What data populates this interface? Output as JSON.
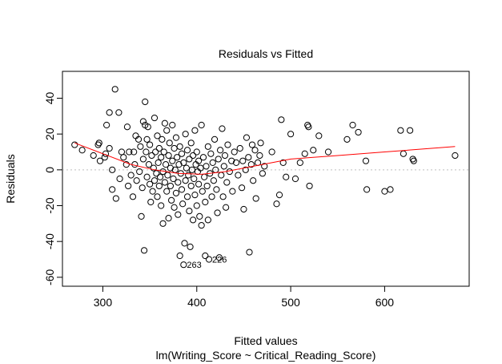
{
  "chart_data": {
    "type": "scatter",
    "title": "Residuals vs Fitted",
    "xlabel": "Fitted values",
    "subtitle": "lm(Writing_Score ~ Critical_Reading_Score)",
    "ylabel": "Residuals",
    "xlim": [
      257,
      690
    ],
    "ylim": [
      -65,
      55
    ],
    "x_ticks": [
      300,
      400,
      500,
      600
    ],
    "y_ticks": [
      -60,
      -40,
      -20,
      0,
      20,
      40
    ],
    "reference_line": {
      "y": 0,
      "style": "dotted",
      "color": "#bfbfbf"
    },
    "smooth_color": "#ff0000",
    "point_color": "#000000",
    "grid": false,
    "legend": "none",
    "smooth_curve": [
      {
        "x": 270,
        "y": 15
      },
      {
        "x": 300,
        "y": 9
      },
      {
        "x": 330,
        "y": 3
      },
      {
        "x": 355,
        "y": 0
      },
      {
        "x": 380,
        "y": -2
      },
      {
        "x": 405,
        "y": -2.5
      },
      {
        "x": 430,
        "y": -1
      },
      {
        "x": 460,
        "y": 2
      },
      {
        "x": 500,
        "y": 6
      },
      {
        "x": 550,
        "y": 8
      },
      {
        "x": 600,
        "y": 10
      },
      {
        "x": 675,
        "y": 13
      }
    ],
    "points": [
      {
        "x": 270,
        "y": 14
      },
      {
        "x": 278,
        "y": 11
      },
      {
        "x": 290,
        "y": 8
      },
      {
        "x": 295,
        "y": 14
      },
      {
        "x": 296,
        "y": 15
      },
      {
        "x": 297,
        "y": 5
      },
      {
        "x": 302,
        "y": 7
      },
      {
        "x": 303,
        "y": 9
      },
      {
        "x": 304,
        "y": 25
      },
      {
        "x": 307,
        "y": 32
      },
      {
        "x": 307,
        "y": 12
      },
      {
        "x": 310,
        "y": 0
      },
      {
        "x": 310,
        "y": -11
      },
      {
        "x": 313,
        "y": 45
      },
      {
        "x": 314,
        "y": -16
      },
      {
        "x": 317,
        "y": 32
      },
      {
        "x": 318,
        "y": -5
      },
      {
        "x": 320,
        "y": 10
      },
      {
        "x": 322,
        "y": 7
      },
      {
        "x": 325,
        "y": 3
      },
      {
        "x": 326,
        "y": 24
      },
      {
        "x": 327,
        "y": -9
      },
      {
        "x": 328,
        "y": 10
      },
      {
        "x": 330,
        "y": -3
      },
      {
        "x": 332,
        "y": -15
      },
      {
        "x": 333,
        "y": 10
      },
      {
        "x": 334,
        "y": 3
      },
      {
        "x": 335,
        "y": 19
      },
      {
        "x": 336,
        "y": -6
      },
      {
        "x": 338,
        "y": 17
      },
      {
        "x": 339,
        "y": -1
      },
      {
        "x": 340,
        "y": 13
      },
      {
        "x": 341,
        "y": -26
      },
      {
        "x": 342,
        "y": -10
      },
      {
        "x": 343,
        "y": 6
      },
      {
        "x": 343,
        "y": 27
      },
      {
        "x": 344,
        "y": -45
      },
      {
        "x": 345,
        "y": 25
      },
      {
        "x": 345,
        "y": 38
      },
      {
        "x": 346,
        "y": 10
      },
      {
        "x": 347,
        "y": -4
      },
      {
        "x": 347,
        "y": 17
      },
      {
        "x": 348,
        "y": 24
      },
      {
        "x": 349,
        "y": 3
      },
      {
        "x": 350,
        "y": -8
      },
      {
        "x": 350,
        "y": 14
      },
      {
        "x": 351,
        "y": -18
      },
      {
        "x": 352,
        "y": 8
      },
      {
        "x": 353,
        "y": -12
      },
      {
        "x": 354,
        "y": 1
      },
      {
        "x": 355,
        "y": -6
      },
      {
        "x": 355,
        "y": 29
      },
      {
        "x": 356,
        "y": 10
      },
      {
        "x": 357,
        "y": -2
      },
      {
        "x": 358,
        "y": 19
      },
      {
        "x": 358,
        "y": -15
      },
      {
        "x": 359,
        "y": 4
      },
      {
        "x": 360,
        "y": -9
      },
      {
        "x": 360,
        "y": 12
      },
      {
        "x": 361,
        "y": -4
      },
      {
        "x": 362,
        "y": 7
      },
      {
        "x": 362,
        "y": -20
      },
      {
        "x": 363,
        "y": 17
      },
      {
        "x": 364,
        "y": -1
      },
      {
        "x": 364,
        "y": -30
      },
      {
        "x": 365,
        "y": 10
      },
      {
        "x": 366,
        "y": -7
      },
      {
        "x": 366,
        "y": 26
      },
      {
        "x": 367,
        "y": 3
      },
      {
        "x": 368,
        "y": -12
      },
      {
        "x": 368,
        "y": 22
      },
      {
        "x": 369,
        "y": -3
      },
      {
        "x": 370,
        "y": 8
      },
      {
        "x": 370,
        "y": -27
      },
      {
        "x": 371,
        "y": 15
      },
      {
        "x": 372,
        "y": -9
      },
      {
        "x": 372,
        "y": 1
      },
      {
        "x": 373,
        "y": -17
      },
      {
        "x": 374,
        "y": 25
      },
      {
        "x": 374,
        "y": 5
      },
      {
        "x": 375,
        "y": -5
      },
      {
        "x": 376,
        "y": 12
      },
      {
        "x": 376,
        "y": -21
      },
      {
        "x": 377,
        "y": 0
      },
      {
        "x": 378,
        "y": -13
      },
      {
        "x": 378,
        "y": 18
      },
      {
        "x": 379,
        "y": 7
      },
      {
        "x": 380,
        "y": -7
      },
      {
        "x": 380,
        "y": -25
      },
      {
        "x": 381,
        "y": 3
      },
      {
        "x": 382,
        "y": -48
      },
      {
        "x": 382,
        "y": 13
      },
      {
        "x": 383,
        "y": -2
      },
      {
        "x": 384,
        "y": -11
      },
      {
        "x": 384,
        "y": 9
      },
      {
        "x": 385,
        "y": -19
      },
      {
        "x": 386,
        "y": -53
      },
      {
        "x": 386,
        "y": 4
      },
      {
        "x": 387,
        "y": -41
      },
      {
        "x": 388,
        "y": -6
      },
      {
        "x": 388,
        "y": 20
      },
      {
        "x": 389,
        "y": 1
      },
      {
        "x": 390,
        "y": -15
      },
      {
        "x": 390,
        "y": 11
      },
      {
        "x": 391,
        "y": -3
      },
      {
        "x": 392,
        "y": -23
      },
      {
        "x": 392,
        "y": 6
      },
      {
        "x": 393,
        "y": -43
      },
      {
        "x": 394,
        "y": -9
      },
      {
        "x": 394,
        "y": 15
      },
      {
        "x": 395,
        "y": 0
      },
      {
        "x": 396,
        "y": -28
      },
      {
        "x": 396,
        "y": 8
      },
      {
        "x": 397,
        "y": -5
      },
      {
        "x": 398,
        "y": 22
      },
      {
        "x": 398,
        "y": -14
      },
      {
        "x": 399,
        "y": 3
      },
      {
        "x": 400,
        "y": -20
      },
      {
        "x": 400,
        "y": 10
      },
      {
        "x": 401,
        "y": -1
      },
      {
        "x": 402,
        "y": -8
      },
      {
        "x": 402,
        "y": 5
      },
      {
        "x": 403,
        "y": -26
      },
      {
        "x": 404,
        "y": 1
      },
      {
        "x": 405,
        "y": -31
      },
      {
        "x": 405,
        "y": 25
      },
      {
        "x": 406,
        "y": -12
      },
      {
        "x": 407,
        "y": 7
      },
      {
        "x": 408,
        "y": -4
      },
      {
        "x": 409,
        "y": -48
      },
      {
        "x": 409,
        "y": -18
      },
      {
        "x": 410,
        "y": 2
      },
      {
        "x": 411,
        "y": -9
      },
      {
        "x": 412,
        "y": -28
      },
      {
        "x": 412,
        "y": 13
      },
      {
        "x": 413,
        "y": -50
      },
      {
        "x": 414,
        "y": -2
      },
      {
        "x": 415,
        "y": 9
      },
      {
        "x": 416,
        "y": -15
      },
      {
        "x": 417,
        "y": 4
      },
      {
        "x": 418,
        "y": -6
      },
      {
        "x": 419,
        "y": 17
      },
      {
        "x": 420,
        "y": 0
      },
      {
        "x": 421,
        "y": -11
      },
      {
        "x": 422,
        "y": -24
      },
      {
        "x": 423,
        "y": 6
      },
      {
        "x": 424,
        "y": -49
      },
      {
        "x": 425,
        "y": 11
      },
      {
        "x": 426,
        "y": -3
      },
      {
        "x": 427,
        "y": 23
      },
      {
        "x": 428,
        "y": -15
      },
      {
        "x": 429,
        "y": 2
      },
      {
        "x": 430,
        "y": 8
      },
      {
        "x": 431,
        "y": -21
      },
      {
        "x": 432,
        "y": -7
      },
      {
        "x": 433,
        "y": 14
      },
      {
        "x": 435,
        "y": -1
      },
      {
        "x": 437,
        "y": 5
      },
      {
        "x": 438,
        "y": -12
      },
      {
        "x": 440,
        "y": 10
      },
      {
        "x": 442,
        "y": 4
      },
      {
        "x": 444,
        "y": -3
      },
      {
        "x": 446,
        "y": 12
      },
      {
        "x": 448,
        "y": -10
      },
      {
        "x": 449,
        "y": 5
      },
      {
        "x": 450,
        "y": -22
      },
      {
        "x": 452,
        "y": 0
      },
      {
        "x": 453,
        "y": 18
      },
      {
        "x": 455,
        "y": 7
      },
      {
        "x": 456,
        "y": -46
      },
      {
        "x": 458,
        "y": 3
      },
      {
        "x": 459,
        "y": 14
      },
      {
        "x": 460,
        "y": -6
      },
      {
        "x": 462,
        "y": 11
      },
      {
        "x": 463,
        "y": -16
      },
      {
        "x": 465,
        "y": 4
      },
      {
        "x": 467,
        "y": 8
      },
      {
        "x": 468,
        "y": 15
      },
      {
        "x": 470,
        "y": -2
      },
      {
        "x": 472,
        "y": 2
      },
      {
        "x": 480,
        "y": 10
      },
      {
        "x": 485,
        "y": -19
      },
      {
        "x": 488,
        "y": -14
      },
      {
        "x": 490,
        "y": 28
      },
      {
        "x": 492,
        "y": 4
      },
      {
        "x": 495,
        "y": -4
      },
      {
        "x": 500,
        "y": 20
      },
      {
        "x": 505,
        "y": -5
      },
      {
        "x": 510,
        "y": 4
      },
      {
        "x": 515,
        "y": 9
      },
      {
        "x": 518,
        "y": 25
      },
      {
        "x": 519,
        "y": 24
      },
      {
        "x": 520,
        "y": -9
      },
      {
        "x": 524,
        "y": 11
      },
      {
        "x": 530,
        "y": 19
      },
      {
        "x": 540,
        "y": 10
      },
      {
        "x": 560,
        "y": 17
      },
      {
        "x": 566,
        "y": 25
      },
      {
        "x": 572,
        "y": 21
      },
      {
        "x": 580,
        "y": 5
      },
      {
        "x": 581,
        "y": -11
      },
      {
        "x": 600,
        "y": -12
      },
      {
        "x": 606,
        "y": -11
      },
      {
        "x": 617,
        "y": 22
      },
      {
        "x": 620,
        "y": 9
      },
      {
        "x": 627,
        "y": 22
      },
      {
        "x": 630,
        "y": 6
      },
      {
        "x": 631,
        "y": 5
      },
      {
        "x": 675,
        "y": 8
      }
    ],
    "annotations": [
      {
        "text": "263",
        "x": 386,
        "y": -53
      },
      {
        "text": "226",
        "x": 413,
        "y": -50
      }
    ]
  }
}
